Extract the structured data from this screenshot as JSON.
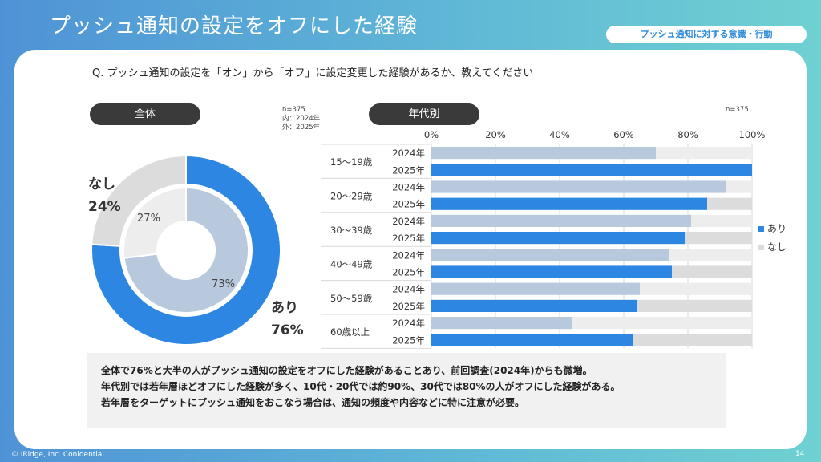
{
  "header": {
    "title": "プッシュ通知の設定をオフにした経験",
    "tag": "プッシュ通知に対する意識・行動"
  },
  "question": "Q. プッシュ通知の設定を「オン」から「オフ」に設定変更した経験があるか、教えてください",
  "left_section": {
    "pill": "全体",
    "note": "n=375\n内：2024年\n外：2025年"
  },
  "right_section": {
    "pill": "年代別",
    "note": "n=375"
  },
  "colors": {
    "ari_2025": "#2d87e2",
    "ari_2024": "#b8c9de",
    "nashi_outer": "#dcdcdc",
    "nashi_inner": "#ededed"
  },
  "chart_data": [
    {
      "type": "pie",
      "subtype": "nested-donut",
      "series": [
        {
          "name": "外：2025年",
          "labels": [
            "あり",
            "なし"
          ],
          "values": [
            76,
            24
          ]
        },
        {
          "name": "内：2024年",
          "labels": [
            "あり",
            "なし"
          ],
          "values": [
            73,
            27
          ]
        }
      ],
      "outer_labels": [
        {
          "label": "あり",
          "value": "76%"
        },
        {
          "label": "なし",
          "value": "24%"
        }
      ],
      "inner_labels": [
        "73%",
        "27%"
      ]
    },
    {
      "type": "bar",
      "orientation": "horizontal",
      "stacked": true,
      "categories": [
        "15～19歳",
        "20～29歳",
        "30～39歳",
        "40～49歳",
        "50～59歳",
        "60歳以上"
      ],
      "years": [
        "2024年",
        "2025年"
      ],
      "xlim": [
        0,
        100
      ],
      "ticks": [
        "0%",
        "20%",
        "40%",
        "60%",
        "80%",
        "100%"
      ],
      "legend": [
        "あり",
        "なし"
      ],
      "legend_position": "right",
      "series": [
        {
          "name": "あり",
          "values_2024": [
            70,
            92,
            81,
            74,
            65,
            44
          ],
          "values_2025": [
            100,
            86,
            79,
            75,
            64,
            63
          ]
        },
        {
          "name": "なし",
          "values_2024": [
            30,
            8,
            19,
            26,
            35,
            56
          ],
          "values_2025": [
            0,
            14,
            21,
            25,
            36,
            37
          ]
        }
      ]
    }
  ],
  "summary": [
    "全体で76%と大半の人がプッシュ通知の設定をオフにした経験があることあり、前回調査(2024年)からも微増。",
    "年代別では若年層ほどオフにした経験が多く、10代・20代では約90%、30代では80%の人がオフにした経験がある。",
    "若年層をターゲットにプッシュ通知をおこなう場合は、通知の頻度や内容などに特に注意が必要。"
  ],
  "footer": {
    "copyright": "© iRidge, Inc. Conidential",
    "page": "14"
  }
}
